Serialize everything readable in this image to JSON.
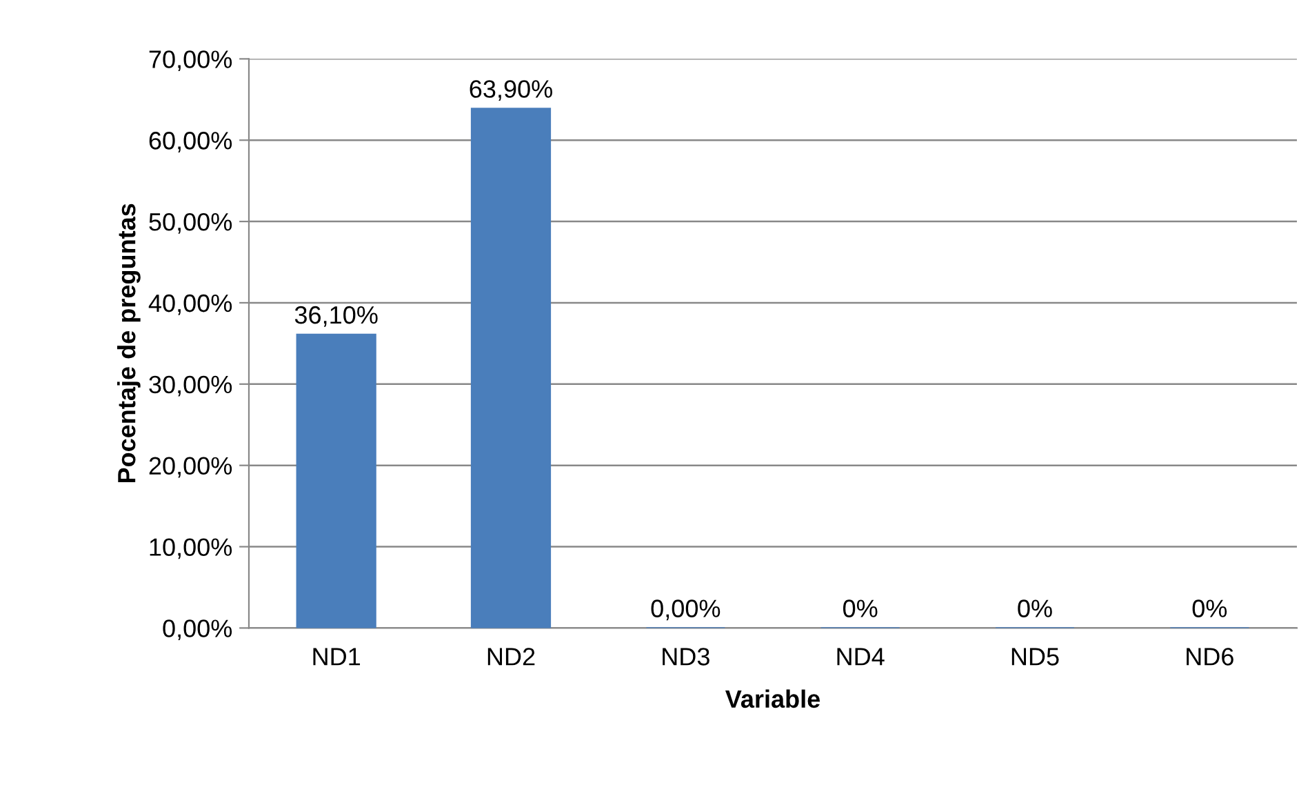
{
  "chart_data": {
    "type": "bar",
    "xlabel": "Variable",
    "ylabel": "Pocentaje de preguntas",
    "categories": [
      "ND1",
      "ND2",
      "ND3",
      "ND4",
      "ND5",
      "ND6"
    ],
    "values": [
      36.1,
      63.9,
      0,
      0,
      0,
      0
    ],
    "value_labels": [
      "36,10%",
      "63,90%",
      "0,00%",
      "0%",
      "0%",
      "0%"
    ],
    "color": "#4a7ebb",
    "ylim": [
      0,
      70
    ],
    "yticks": [
      {
        "value": 0,
        "label": "0,00%"
      },
      {
        "value": 10,
        "label": "10,00%"
      },
      {
        "value": 20,
        "label": "20,00%"
      },
      {
        "value": 30,
        "label": "30,00%"
      },
      {
        "value": 40,
        "label": "40,00%"
      },
      {
        "value": 50,
        "label": "50,00%"
      },
      {
        "value": 60,
        "label": "60,00%"
      },
      {
        "value": 70,
        "label": "70,00%"
      }
    ],
    "grid": "y",
    "legend": false
  }
}
